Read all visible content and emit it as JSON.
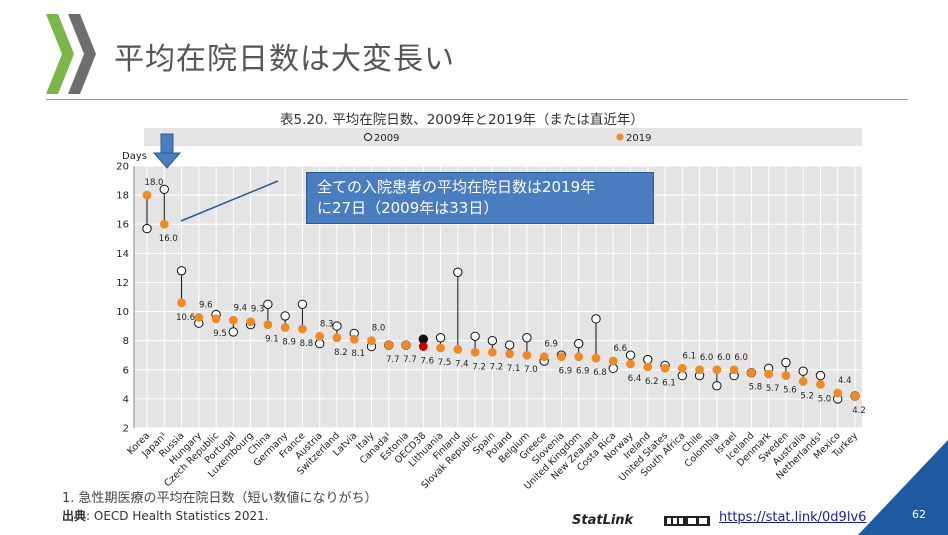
{
  "slide": {
    "title": "平均在院日数は大変長い",
    "page_number": "62",
    "footnote": "1. 急性期医療の平均在院日数（短い数値になりがち）",
    "source_label": "出典",
    "source_text": ": OECD Health Statistics 2021.",
    "statlink_label": "StatLink",
    "statlink_url": "https://stat.link/0d9lv6",
    "callout_line1": "全ての入院患者の平均在院日数は2019年",
    "callout_line2": "に27日（2009年は33日）",
    "colors": {
      "accent_green": "#7ab648",
      "accent_gray": "#6d6e70",
      "callout_blue": "#4a7dbf",
      "corner_blue": "#1f5aa0"
    }
  },
  "chart_data": {
    "type": "scatter",
    "title": "表5.20. 平均在院日数、2009年と2019年（または直近年）",
    "ylabel": "Days",
    "ylim": [
      2,
      20
    ],
    "yticks": [
      2,
      4,
      6,
      8,
      10,
      12,
      14,
      16,
      18,
      20
    ],
    "grid": true,
    "legend_position": "top",
    "series": [
      {
        "name": "2009",
        "color": "#ffffff"
      },
      {
        "name": "2019",
        "color": "#f08a24"
      }
    ],
    "highlight_color": "#cc0000",
    "highlight_color_2009": "#111111",
    "categories": [
      "Korea",
      "Japan¹",
      "Russia",
      "Hungary",
      "Czech Republic",
      "Portugal",
      "Luxembourg",
      "China",
      "Germany",
      "France",
      "Austria",
      "Switzerland",
      "Latvia",
      "Italy",
      "Canada¹",
      "Estonia",
      "OECD38",
      "Lithuania",
      "Finland",
      "Slovak Republic",
      "Spain",
      "Poland",
      "Belgium",
      "Greece",
      "Slovenia",
      "United Kingdom",
      "New Zealand",
      "Costa Rica",
      "Norway",
      "Ireland",
      "United States",
      "South Africa",
      "Chile",
      "Colombia",
      "Israel",
      "Iceland",
      "Denmark",
      "Sweden",
      "Australia",
      "Netherlands¹",
      "Mexico",
      "Turkey"
    ],
    "values_2009": [
      15.7,
      18.4,
      12.8,
      9.2,
      9.8,
      8.6,
      9.1,
      10.5,
      9.7,
      10.5,
      7.8,
      9.0,
      8.5,
      7.6,
      7.7,
      7.7,
      8.1,
      8.2,
      12.7,
      8.3,
      8.0,
      7.7,
      8.2,
      6.6,
      7.0,
      7.8,
      9.5,
      6.1,
      7.0,
      6.7,
      6.3,
      5.6,
      5.6,
      4.9,
      5.6,
      5.8,
      6.1,
      6.5,
      5.9,
      5.6,
      4.0,
      4.2
    ],
    "values_2019": [
      18.0,
      16.0,
      10.6,
      9.6,
      9.5,
      9.4,
      9.3,
      9.1,
      8.9,
      8.8,
      8.3,
      8.2,
      8.1,
      8.0,
      7.7,
      7.7,
      7.6,
      7.5,
      7.4,
      7.2,
      7.2,
      7.1,
      7.0,
      6.9,
      6.9,
      6.9,
      6.8,
      6.6,
      6.4,
      6.2,
      6.1,
      6.1,
      6.0,
      6.0,
      6.0,
      5.8,
      5.7,
      5.6,
      5.2,
      5.0,
      4.4,
      4.2
    ],
    "labels_2019": [
      "18.0",
      "16.0",
      "10.6",
      "9.6",
      "9.5",
      "9.4",
      "9.3",
      "9.1",
      "8.9",
      "8.8",
      "8.3",
      "8.2",
      "8.1",
      "8.0",
      "7.7",
      "7.7",
      "7.6",
      "7.5",
      "7.4",
      "7.2",
      "7.2",
      "7.1",
      "7.0",
      "6.9",
      "6.9",
      "6.9",
      "6.8",
      "6.6",
      "6.4",
      "6.2",
      "6.1",
      "6.1",
      "6.0",
      "6.0",
      "6.0",
      "5.8",
      "5.7",
      "5.6",
      "5.2",
      "5.0",
      "4.4",
      "4.2"
    ],
    "label_position": [
      "above",
      "below",
      "below",
      "above",
      "below",
      "above",
      "above",
      "below",
      "below",
      "below",
      "above",
      "below",
      "below",
      "above",
      "below",
      "below",
      "below",
      "below",
      "below",
      "below",
      "below",
      "below",
      "below",
      "above",
      "below",
      "below",
      "below",
      "above",
      "below",
      "below",
      "below",
      "above",
      "above",
      "above",
      "above",
      "below",
      "below",
      "below",
      "below",
      "below",
      "above",
      "below"
    ]
  }
}
